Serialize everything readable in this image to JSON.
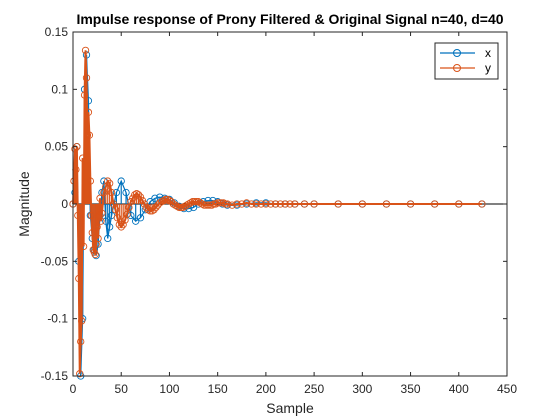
{
  "chart_data": {
    "type": "line",
    "title": "Impulse response of Prony Filtered & Original Signal  n=40, d=40",
    "xlabel": "Sample",
    "ylabel": "Magnitude",
    "xlim": [
      0,
      450
    ],
    "ylim": [
      -0.15,
      0.15
    ],
    "x_ticks": [
      0,
      50,
      100,
      150,
      200,
      250,
      300,
      350,
      400,
      450
    ],
    "y_ticks": [
      -0.15,
      -0.1,
      -0.05,
      0,
      0.05,
      0.1,
      0.15
    ],
    "x_tick_labels": [
      "0",
      "50",
      "100",
      "150",
      "200",
      "250",
      "300",
      "350",
      "400",
      "450"
    ],
    "y_tick_labels": [
      "-0.15",
      "-0.1",
      "-0.05",
      "0",
      "0.05",
      "0.1",
      "0.15"
    ],
    "legend_position": "top-right",
    "grid": false,
    "marker": "circle",
    "series": [
      {
        "name": "x",
        "color": "#0072BD",
        "x": [
          0,
          2,
          4,
          6,
          8,
          10,
          12,
          14,
          16,
          18,
          20,
          22,
          24,
          26,
          28,
          30,
          32,
          34,
          36,
          38,
          40,
          45,
          50,
          55,
          60,
          65,
          70,
          75,
          80,
          85,
          90,
          95,
          100,
          105,
          110,
          115,
          120,
          125,
          130,
          135,
          140,
          145,
          150,
          155,
          160,
          170,
          180,
          190,
          200,
          210,
          220,
          230,
          240,
          250,
          275,
          300,
          325,
          350,
          375,
          400,
          424
        ],
        "y": [
          0,
          0.01,
          0.05,
          -0.05,
          -0.15,
          -0.1,
          0.1,
          0.13,
          0.09,
          -0.01,
          -0.03,
          -0.04,
          -0.045,
          -0.035,
          -0.01,
          0.01,
          0.02,
          -0.015,
          -0.03,
          -0.02,
          -0.01,
          0.01,
          0.02,
          0.01,
          -0.01,
          -0.015,
          -0.012,
          -0.005,
          0.002,
          0.005,
          0.006,
          0.005,
          0.004,
          0.001,
          -0.002,
          -0.004,
          -0.004,
          -0.003,
          0,
          0.002,
          0.003,
          0.003,
          0.002,
          0,
          -0.001,
          -0.001,
          0,
          0.001,
          0.001,
          0,
          0,
          0,
          0,
          0,
          0,
          0,
          0,
          0,
          0,
          0,
          0
        ]
      },
      {
        "name": "y",
        "color": "#D95319",
        "x": [
          0,
          1,
          2,
          3,
          4,
          5,
          6,
          7,
          8,
          9,
          10,
          11,
          12,
          13,
          14,
          15,
          16,
          17,
          18,
          19,
          20,
          21,
          22,
          23,
          24,
          25,
          26,
          27,
          28,
          29,
          30,
          32,
          34,
          36,
          38,
          40,
          42,
          44,
          46,
          48,
          50,
          52,
          54,
          56,
          58,
          60,
          62,
          64,
          66,
          68,
          70,
          72,
          74,
          76,
          78,
          80,
          82,
          84,
          86,
          88,
          90,
          92,
          94,
          96,
          98,
          100,
          102,
          104,
          106,
          108,
          110,
          112,
          114,
          116,
          118,
          120,
          122,
          124,
          126,
          128,
          130,
          132,
          134,
          136,
          138,
          140,
          142,
          144,
          146,
          148,
          150,
          152,
          154,
          156,
          158,
          160,
          165,
          170,
          175,
          180,
          185,
          190,
          195,
          200,
          205,
          210,
          215,
          220,
          225,
          230,
          240,
          250,
          275,
          300,
          325,
          350,
          375,
          400,
          424
        ],
        "y": [
          0,
          0.02,
          0.048,
          0.03,
          0.05,
          -0.01,
          -0.065,
          -0.148,
          -0.12,
          -0.102,
          0.04,
          -0.037,
          0.095,
          0.134,
          0.11,
          0.06,
          0.08,
          0.06,
          0.02,
          -0.01,
          -0.025,
          -0.04,
          -0.042,
          -0.044,
          -0.035,
          -0.02,
          -0.03,
          -0.01,
          0.005,
          -0.015,
          -0.008,
          0.01,
          0.015,
          0.02,
          0.018,
          0.01,
          0.0,
          -0.005,
          -0.012,
          -0.018,
          -0.02,
          -0.018,
          -0.014,
          -0.009,
          -0.003,
          0.002,
          0.005,
          0.008,
          0.009,
          0.008,
          0.006,
          0.003,
          0.0,
          -0.003,
          -0.005,
          -0.006,
          -0.006,
          -0.005,
          -0.003,
          -0.001,
          0.001,
          0.002,
          0.003,
          0.004,
          0.004,
          0.003,
          0.002,
          0.0,
          -0.001,
          -0.002,
          -0.003,
          -0.003,
          -0.003,
          -0.002,
          -0.001,
          0.0,
          0.001,
          0.002,
          0.002,
          0.002,
          0.002,
          0.001,
          0.0,
          -0.001,
          -0.001,
          -0.001,
          -0.001,
          -0.001,
          0.0,
          0.0,
          0.001,
          0.001,
          0.001,
          0.001,
          0.0,
          0.0,
          -0.001,
          0.0,
          0.0,
          0.001,
          0.0,
          0.0,
          0.0,
          0.0,
          0.0,
          0.0,
          0.0,
          0.0,
          0.0,
          0.0,
          0.0,
          0.0,
          0.0,
          0.0,
          0.0,
          0.0,
          0.0,
          0.0,
          0.0
        ]
      }
    ]
  }
}
